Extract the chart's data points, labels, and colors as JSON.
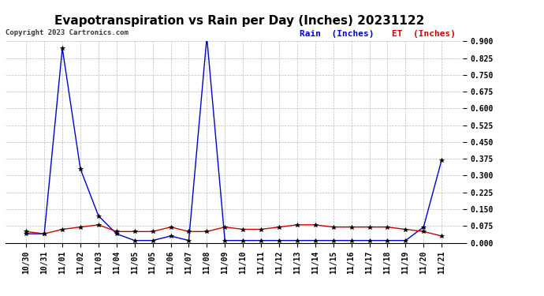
{
  "title": "Evapotranspiration vs Rain per Day (Inches) 20231122",
  "copyright": "Copyright 2023 Cartronics.com",
  "legend_rain": "Rain  (Inches)",
  "legend_et": "ET  (Inches)",
  "x_labels": [
    "10/30",
    "10/31",
    "11/01",
    "11/02",
    "11/03",
    "11/04",
    "11/05",
    "11/05",
    "11/06",
    "11/07",
    "11/08",
    "11/09",
    "11/10",
    "11/11",
    "11/12",
    "11/13",
    "11/14",
    "11/15",
    "11/16",
    "11/17",
    "11/18",
    "11/19",
    "11/20",
    "11/21"
  ],
  "rain": [
    0.04,
    0.04,
    0.87,
    0.33,
    0.12,
    0.04,
    0.01,
    0.01,
    0.03,
    0.01,
    0.92,
    0.01,
    0.01,
    0.01,
    0.01,
    0.01,
    0.01,
    0.01,
    0.01,
    0.01,
    0.01,
    0.01,
    0.07,
    0.37
  ],
  "et": [
    0.05,
    0.04,
    0.06,
    0.07,
    0.08,
    0.05,
    0.05,
    0.05,
    0.07,
    0.05,
    0.05,
    0.07,
    0.06,
    0.06,
    0.07,
    0.08,
    0.08,
    0.07,
    0.07,
    0.07,
    0.07,
    0.06,
    0.05,
    0.03
  ],
  "ylim": [
    0.0,
    0.9
  ],
  "yticks": [
    0.0,
    0.075,
    0.15,
    0.225,
    0.3,
    0.375,
    0.45,
    0.525,
    0.6,
    0.675,
    0.75,
    0.825,
    0.9
  ],
  "rain_color": "#0000cc",
  "et_color": "#cc0000",
  "marker_color": "#000000",
  "background_color": "#ffffff",
  "grid_color": "#bbbbbb",
  "title_fontsize": 11,
  "tick_fontsize": 7,
  "copyright_fontsize": 6.5,
  "legend_fontsize": 8
}
